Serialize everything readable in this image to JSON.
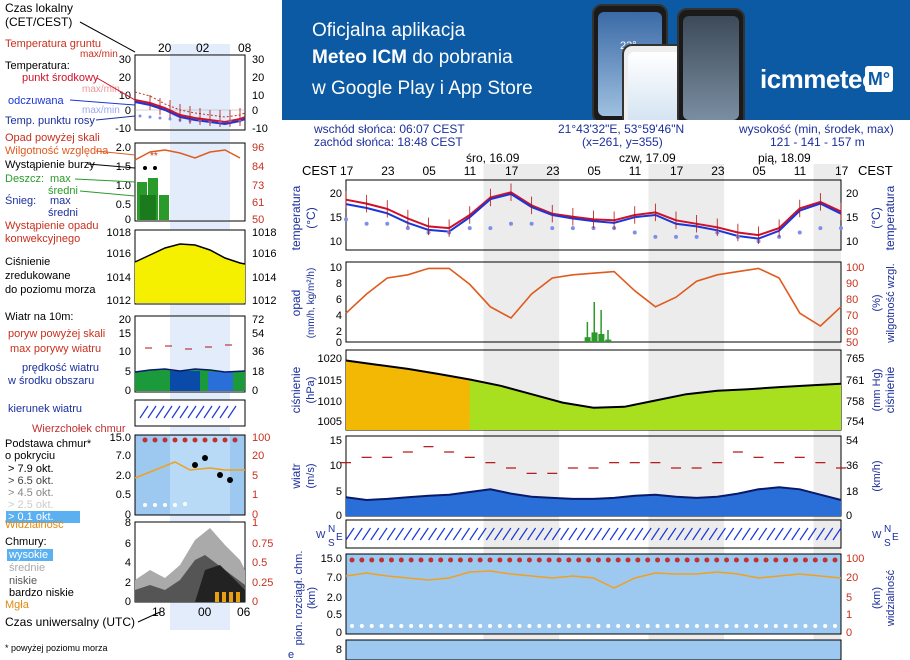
{
  "banner": {
    "line1": "Oficjalna aplikacja",
    "line2_pre": "Meteo ICM",
    "line2_post": " do pobrania",
    "line3": "w Google Play i App Store",
    "logo": "icmmeteo",
    "badge": "M°",
    "phone_time": "23°"
  },
  "info": {
    "sunrise": "wschód słońca: 06:07 CEST",
    "sunset": "zachód słońca: 18:48 CEST",
    "coords": "21°43'32\"E, 53°59'46\"N",
    "grid": "(x=261, y=355)",
    "height_label": "wysokość (min, środek, max)",
    "height_values": "121 - 141 - 157 m"
  },
  "legend": {
    "time_local": "Czas lokalny",
    "time_local2": "(CET/CEST)",
    "mini_ticks": [
      "20",
      "02",
      "08"
    ],
    "mini_ticks_utc": [
      "18",
      "00",
      "06"
    ],
    "time_utc": "Czas uniwersalny (UTC)",
    "footnote": "* powyżej poziomu morza",
    "temp_ground": "Temperatura gruntu",
    "temp_ground_mm": "max/min",
    "temperature": "Temperatura:",
    "mid_point": "punkt środkowy",
    "mid_max": "max/min",
    "feels_like": "odczuwana",
    "feels_max": "max/min",
    "dew_point": "Temp. punktu rosy",
    "temp_ticks_left": [
      "30",
      "20",
      "10",
      "0",
      "-10"
    ],
    "temp_ticks_right": [
      "30",
      "20",
      "10",
      "0",
      "-10"
    ],
    "precip_above": "Opad powyżej skali",
    "humidity": "Wilgotność względna",
    "storm": "Wystąpienie burzy",
    "rain": "Deszcz:",
    "rain_max": "max",
    "rain_mean": "średni",
    "snow": "Śnieg:",
    "snow_max": "max",
    "snow_mean": "średni",
    "conv": "Wystąpienie opadu",
    "conv2": "konwekcyjnego",
    "precip_ticks_left": [
      "2.0",
      "1.5",
      "1.0",
      "0.5",
      "0"
    ],
    "precip_ticks_right": [
      "96",
      "84",
      "73",
      "61",
      "50"
    ],
    "pressure": "Ciśnienie",
    "pressure2": "zredukowane",
    "pressure3": "do poziomu morza",
    "pressure_ticks": [
      "1018",
      "1016",
      "1014",
      "1012"
    ],
    "wind_at": "Wiatr na 10m:",
    "gust_above": "poryw powyżej skali",
    "gust_max": "max porywy wiatru",
    "wind_speed": "prędkość wiatru",
    "wind_area": "w środku obszaru",
    "wind_ticks_left": [
      "20",
      "15",
      "10",
      "5",
      "0"
    ],
    "wind_ticks_right": [
      "72",
      "54",
      "36",
      "18",
      "0"
    ],
    "wind_dir": "kierunek wiatru",
    "wierzcholek": "Wierzchołek chmur",
    "base": "Podstawa chmur*",
    "base2": "o pokryciu",
    "okt": [
      "> 7.9 okt.",
      "> 6.5 okt.",
      "> 4.5 okt.",
      "> 2.5 okt.",
      "> 0.1 okt."
    ],
    "vis": "Widzialność",
    "cb_ticks_left": [
      "15.0",
      "7.0",
      "2.0",
      "0.5",
      "0"
    ],
    "cb_ticks_right": [
      "100",
      "20",
      "5",
      "1",
      "0"
    ],
    "clouds": "Chmury:",
    "cl_high": "wysokie",
    "cl_mid": "średnie",
    "cl_low": "niskie",
    "cl_vlow": "bardzo niskie",
    "fog": "Mgła",
    "cl_ticks_left": [
      "8",
      "6",
      "4",
      "2",
      "0"
    ],
    "cl_ticks_right": [
      "1",
      "0.75",
      "0.5",
      "0.25",
      "0"
    ]
  },
  "main": {
    "cest": "CEST",
    "days": [
      "śro, 16.09",
      "czw, 17.09",
      "pią, 18.09"
    ],
    "hours": [
      "17",
      "23",
      "05",
      "11",
      "17",
      "23",
      "05",
      "11",
      "17",
      "23",
      "05",
      "11",
      "17"
    ],
    "temp_label": "temperatura",
    "temp_unit": "(°C)",
    "temp_ticks": [
      "20",
      "15",
      "10"
    ],
    "precip_label": "opad",
    "precip_unit": "(mm/h, kg/m²/h)",
    "precip_ticks": [
      "10",
      "8",
      "6",
      "4",
      "2",
      "0"
    ],
    "hum_label": "wilgotność wzgl.",
    "hum_unit": "(%)",
    "hum_ticks": [
      "100",
      "90",
      "80",
      "70",
      "60",
      "50"
    ],
    "pres_label": "ciśnienie",
    "pres_unit": "(hPa)",
    "pres_ticks": [
      "1020",
      "1015",
      "1010",
      "1005"
    ],
    "pres_unit_r": "(mm Hg)",
    "pres_ticks_r": [
      "765",
      "761",
      "758",
      "754"
    ],
    "wind_label": "wiatr",
    "wind_unit": "(m/s)",
    "wind_ticks": [
      "15",
      "10",
      "5",
      "0"
    ],
    "wind_unit_r": "(km/h)",
    "wind_ticks_r": [
      "54",
      "36",
      "18",
      "0"
    ],
    "dir_letters": [
      "W",
      "N",
      "S",
      "E"
    ],
    "cb_label": "pion. rozciągł. chm.",
    "cb_unit": "(km)",
    "cb_ticks": [
      "15.0",
      "7.0",
      "2.0",
      "0.5",
      "0"
    ],
    "vis_label": "widzialność",
    "vis_unit": "(km)",
    "vis_ticks": [
      "100",
      "20",
      "5",
      "1",
      "0"
    ],
    "bottom_tick": "8",
    "bottom_letter": "e"
  },
  "colors": {
    "banner": "#0b5aa3",
    "axis_blue": "#1b2f9c",
    "axis_red": "#c8301e",
    "temp": "#d0102a",
    "feels": "#1a36d8",
    "dew": "#7f8fe8",
    "humidity": "#e05a1e",
    "rain": "#2a9a2a",
    "pressure_fill": "#a8e020",
    "pressure_hi": "#ffb000",
    "wind_fill": "#2a6fd8",
    "gust": "#b01010"
  },
  "chart_data": [
    {
      "type": "line",
      "title": "temperatura",
      "x_hours": [
        17,
        20,
        23,
        2,
        5,
        8,
        11,
        14,
        17,
        20,
        23,
        2,
        5,
        8,
        11,
        14,
        17,
        20,
        23,
        2,
        5,
        8,
        11,
        14,
        17
      ],
      "ylim": [
        7,
        23
      ],
      "series": [
        {
          "name": "punkt środkowy",
          "values": [
            18.5,
            17.6,
            16.4,
            14.2,
            12.4,
            12.0,
            15.0,
            19.0,
            20.2,
            17.2,
            15.3,
            14.6,
            14.0,
            13.8,
            15.0,
            15.6,
            13.8,
            13.0,
            12.2,
            11.0,
            10.4,
            12.0,
            16.5,
            18.0,
            15.8
          ]
        },
        {
          "name": "odczuwana",
          "values": [
            17.5,
            16.6,
            15.4,
            13.2,
            11.6,
            11.2,
            14.5,
            18.6,
            19.8,
            16.8,
            15.0,
            14.2,
            13.6,
            13.2,
            14.5,
            15.0,
            13.0,
            12.4,
            11.5,
            10.2,
            9.6,
            11.4,
            16.0,
            17.6,
            15.3
          ]
        },
        {
          "name": "Temp. punktu rosy",
          "values": [
            14,
            13,
            13,
            12,
            11,
            11,
            12,
            12,
            13,
            13,
            12,
            12,
            12,
            12,
            11,
            10,
            10,
            10,
            11,
            10,
            9,
            10,
            11,
            12,
            12
          ]
        }
      ]
    },
    {
      "type": "line",
      "title": "wilgotność wzgl.",
      "x_hours": [
        17,
        20,
        23,
        2,
        5,
        8,
        11,
        14,
        17,
        20,
        23,
        2,
        5,
        8,
        11,
        14,
        17,
        20,
        23,
        2,
        5,
        8,
        11,
        14,
        17
      ],
      "ylim": [
        50,
        100
      ],
      "series": [
        {
          "name": "wilgotność",
          "values": [
            68,
            80,
            90,
            92,
            96,
            96,
            86,
            72,
            65,
            80,
            90,
            92,
            93,
            94,
            82,
            72,
            78,
            88,
            92,
            94,
            96,
            90,
            68,
            60,
            72
          ]
        }
      ]
    },
    {
      "type": "bar",
      "title": "opad",
      "x_hours": [
        2,
        3,
        4,
        5
      ],
      "ylim": [
        0,
        10
      ],
      "series": [
        {
          "name": "max",
          "values": [
            2.5,
            5.0,
            4.0,
            1.5
          ]
        },
        {
          "name": "średni",
          "values": [
            0.6,
            1.2,
            1.0,
            0.3
          ]
        }
      ]
    },
    {
      "type": "area",
      "title": "ciśnienie",
      "x_hours": [
        17,
        20,
        23,
        2,
        5,
        8,
        11,
        14,
        17,
        20,
        23,
        2,
        5,
        8,
        11,
        14,
        17
      ],
      "ylim": [
        1003,
        1022
      ],
      "series": [
        {
          "name": "ciśnienie",
          "values": [
            1019.5,
            1018.5,
            1017.5,
            1016.3,
            1015.0,
            1013.5,
            1011.5,
            1009.5,
            1008.3,
            1008.5,
            1010.0,
            1011.5,
            1012.3,
            1012.7,
            1013.2,
            1013.6,
            1014.0
          ]
        }
      ]
    },
    {
      "type": "area",
      "title": "wiatr",
      "x_hours": [
        17,
        20,
        23,
        2,
        5,
        8,
        11,
        14,
        17,
        20,
        23,
        2,
        5,
        8,
        11,
        14,
        17,
        20,
        23,
        2,
        5,
        8,
        11,
        14,
        17
      ],
      "ylim": [
        0,
        15
      ],
      "series": [
        {
          "name": "prędkość wiatru",
          "values": [
            3.5,
            3.0,
            3.2,
            3.5,
            3.8,
            4.0,
            4.5,
            5.0,
            4.2,
            3.6,
            3.4,
            3.2,
            3.2,
            3.4,
            3.8,
            4.0,
            3.6,
            3.4,
            3.6,
            4.2,
            5.0,
            5.4,
            5.0,
            4.0,
            3.0
          ]
        },
        {
          "name": "max porywy wiatru",
          "values": [
            10,
            11,
            11,
            12,
            13,
            12,
            11,
            10,
            9,
            8,
            8,
            9,
            9,
            10,
            10,
            10,
            9,
            9,
            10,
            12,
            11,
            10,
            11,
            10,
            9
          ]
        }
      ]
    }
  ]
}
